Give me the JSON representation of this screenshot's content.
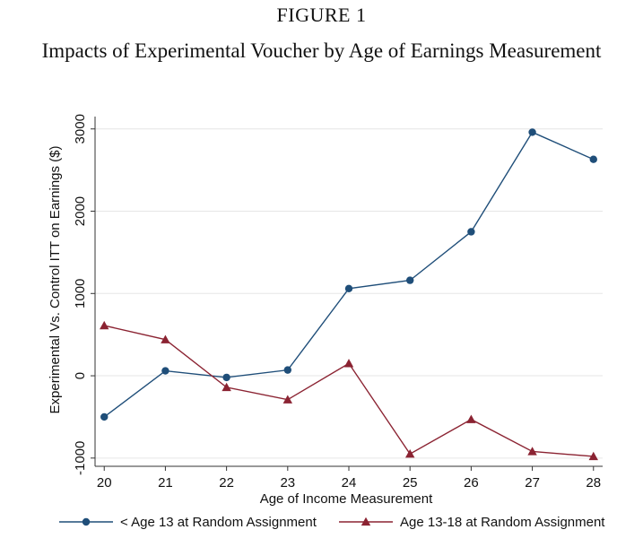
{
  "figure": {
    "label": "FIGURE 1",
    "title": "Impacts of Experimental Voucher by Age of Earnings Measurement"
  },
  "colors": {
    "series1": "#1f4e79",
    "series2": "#8b2332",
    "grid": "#e6e6e6",
    "axis": "#333333"
  },
  "chart_data": {
    "type": "line",
    "xlabel": "Age of Income Measurement",
    "ylabel": "Experimental Vs. Control ITT on Earnings ($)",
    "x": [
      20,
      21,
      22,
      23,
      24,
      25,
      26,
      27,
      28
    ],
    "x_ticks": [
      "20",
      "21",
      "22",
      "23",
      "24",
      "25",
      "26",
      "27",
      "28"
    ],
    "y_ticks": [
      "-1000",
      "0",
      "1000",
      "2000",
      "3000"
    ],
    "ylim": [
      -1100,
      3150
    ],
    "xlim": [
      19.85,
      28.15
    ],
    "grid": "horizontal",
    "legend_position": "bottom",
    "series": [
      {
        "name": "< Age 13 at Random Assignment",
        "marker": "circle",
        "values": [
          -500,
          60,
          -20,
          70,
          1060,
          1160,
          1750,
          2960,
          2630
        ]
      },
      {
        "name": "Age 13-18 at Random Assignment",
        "marker": "triangle",
        "values": [
          610,
          440,
          -140,
          -290,
          150,
          -950,
          -530,
          -920,
          -980
        ]
      }
    ]
  }
}
